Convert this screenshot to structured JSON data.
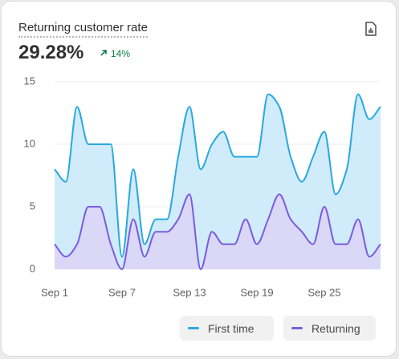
{
  "header": {
    "title": "Returning customer rate",
    "value": "29.28%",
    "change": "14%"
  },
  "chart_data": {
    "type": "area",
    "categories": [
      "Sep 1",
      null,
      null,
      null,
      null,
      null,
      "Sep 7",
      null,
      null,
      null,
      null,
      null,
      "Sep 13",
      null,
      null,
      null,
      null,
      null,
      "Sep 19",
      null,
      null,
      null,
      null,
      null,
      "Sep 25",
      null,
      null,
      null,
      null,
      null
    ],
    "series": [
      {
        "name": "First time",
        "color": "#29a9e0",
        "fill": "#c8e8f8",
        "values": [
          8,
          7,
          13,
          10,
          10,
          10,
          1,
          8,
          2,
          4,
          4,
          9,
          13,
          8,
          10,
          11,
          9,
          9,
          9,
          14,
          13,
          9,
          7,
          9,
          11,
          6,
          8,
          14,
          12,
          13
        ]
      },
      {
        "name": "Returning",
        "color": "#7b5ce0",
        "fill": "#ddd3f6",
        "values": [
          2,
          1,
          2,
          5,
          5,
          2,
          0,
          4,
          1,
          3,
          3,
          4,
          6,
          0,
          3,
          2,
          2,
          4,
          2,
          4,
          6,
          4,
          3,
          2,
          5,
          2,
          2,
          4,
          1,
          2
        ]
      }
    ],
    "ylim": [
      0,
      15
    ],
    "yticks": [
      0,
      5,
      10,
      15
    ],
    "grid": true
  }
}
